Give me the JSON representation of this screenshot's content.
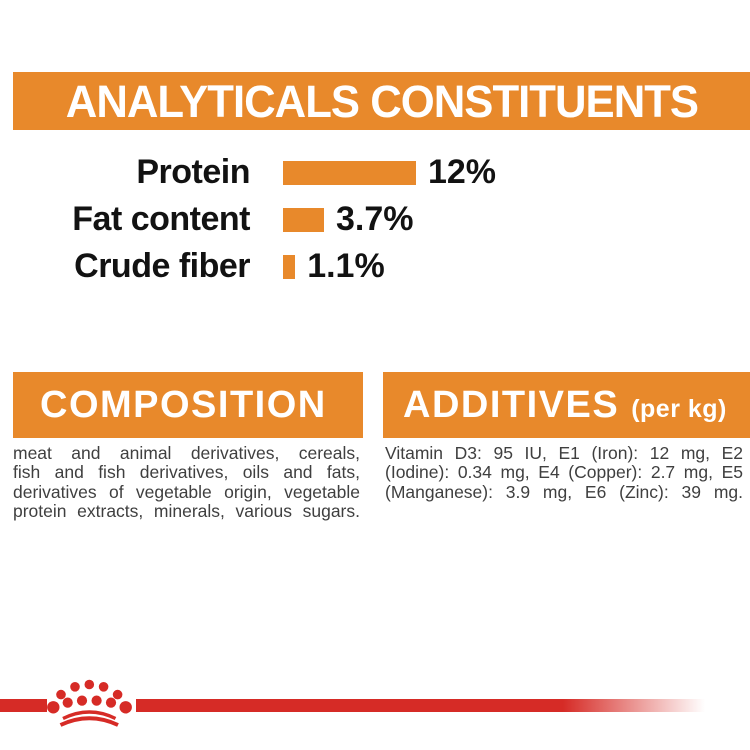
{
  "colors": {
    "orange": "#E8892B",
    "red": "#D62B26",
    "heading": "#FFFFFF",
    "body": "#3F3F3F",
    "chart_text": "#121212",
    "background": "#FFFFFF"
  },
  "header": {
    "title": "ANALYTICALS CONSTITUENTS"
  },
  "chart_data": {
    "type": "bar",
    "orientation": "horizontal",
    "title": "ANALYTICALS CONSTITUENTS",
    "categories": [
      "Protein",
      "Fat content",
      "Crude fiber"
    ],
    "values": [
      12,
      3.7,
      1.1
    ],
    "value_labels": [
      "12%",
      "3.7%",
      "1.1%"
    ],
    "unit": "%",
    "xlim": [
      0,
      12
    ],
    "grid": false,
    "legend": false,
    "bar_color": "#E8892B"
  },
  "composition": {
    "title": "COMPOSITION",
    "lines": [
      "meat and animal derivatives, cereals,",
      "fish and fish derivatives, oils and fats,",
      "derivatives of vegetable origin, vegetable",
      "protein extracts, minerals, various sugars."
    ]
  },
  "additives": {
    "title": "ADDITIVES",
    "unit_note": "(per kg)",
    "lines": [
      "Vitamin D3: 95 IU, E1 (Iron): 12 mg, E2",
      "(Iodine): 0.34 mg, E4 (Copper): 2.7 mg, E5",
      "(Manganese): 3.9 mg, E6 (Zinc): 39 mg."
    ]
  },
  "footer": {
    "brand_mark": "royal-canin-crown"
  }
}
